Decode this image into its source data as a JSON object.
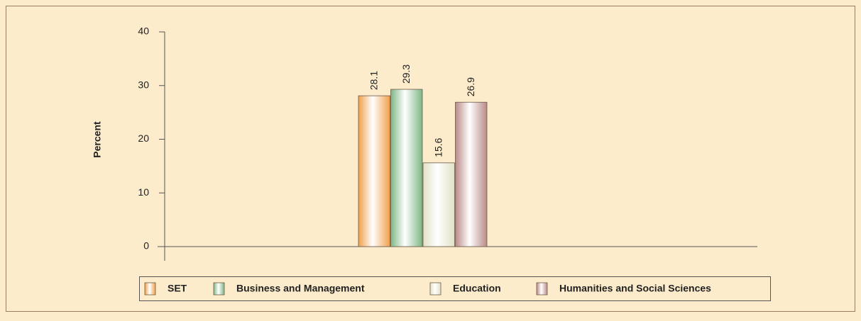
{
  "chart_data": {
    "type": "bar",
    "y_label": "Percent",
    "categories": [
      null
    ],
    "series": [
      {
        "name": "SET",
        "color": "#f0a04c",
        "values": [
          28.1
        ]
      },
      {
        "name": "Business and Management",
        "color": "#7db686",
        "values": [
          29.3
        ]
      },
      {
        "name": "Education",
        "color": "#e2e1c6",
        "values": [
          15.6
        ]
      },
      {
        "name": "Humanities and Social Sciences",
        "color": "#b98a88",
        "values": [
          26.9
        ]
      }
    ],
    "ylim": [
      0,
      40
    ],
    "yticks": [
      0,
      10,
      20,
      30,
      40
    ]
  }
}
